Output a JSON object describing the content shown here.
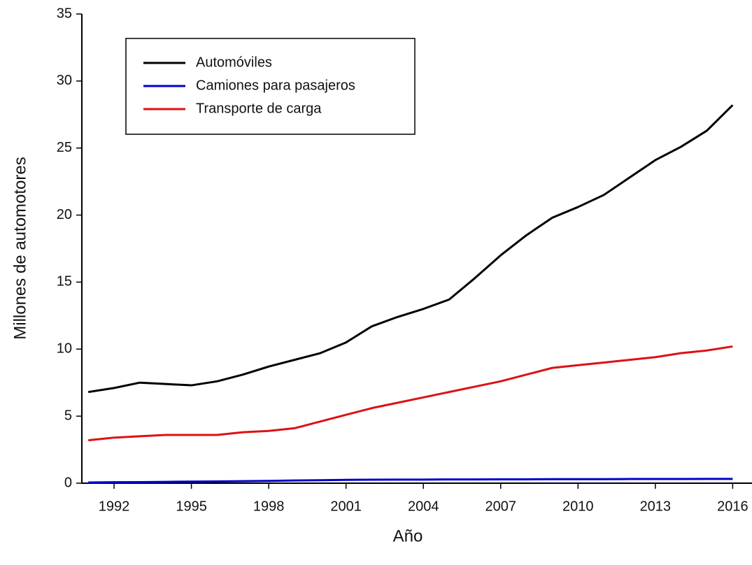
{
  "chart_data": {
    "type": "line",
    "xlabel": "Año",
    "ylabel": "Millones de automotores",
    "x": [
      1991,
      1992,
      1993,
      1994,
      1995,
      1996,
      1997,
      1998,
      1999,
      2000,
      2001,
      2002,
      2003,
      2004,
      2005,
      2006,
      2007,
      2008,
      2009,
      2010,
      2011,
      2012,
      2013,
      2014,
      2015,
      2016
    ],
    "series": [
      {
        "name": "Automóviles",
        "color": "#000000",
        "values": [
          6.8,
          7.1,
          7.5,
          7.4,
          7.3,
          7.6,
          8.1,
          8.7,
          9.2,
          9.7,
          10.5,
          11.7,
          12.4,
          13.0,
          13.7,
          15.3,
          17.0,
          18.5,
          19.8,
          20.6,
          21.5,
          22.8,
          24.1,
          25.1,
          26.3,
          28.2
        ]
      },
      {
        "name": "Camiones para pasajeros",
        "color": "#0000cc",
        "values": [
          0.05,
          0.07,
          0.08,
          0.1,
          0.12,
          0.13,
          0.15,
          0.17,
          0.2,
          0.22,
          0.25,
          0.26,
          0.27,
          0.27,
          0.28,
          0.28,
          0.29,
          0.29,
          0.3,
          0.3,
          0.3,
          0.31,
          0.31,
          0.31,
          0.32,
          0.32
        ]
      },
      {
        "name": "Transporte de carga",
        "color": "#dd1111",
        "values": [
          3.2,
          3.4,
          3.5,
          3.6,
          3.6,
          3.6,
          3.8,
          3.9,
          4.1,
          4.6,
          5.1,
          5.6,
          6.0,
          6.4,
          6.8,
          7.2,
          7.6,
          8.1,
          8.6,
          8.8,
          9.0,
          9.2,
          9.4,
          9.7,
          9.9,
          10.2
        ]
      }
    ],
    "xlim": [
      1990.75,
      2016.75
    ],
    "xticks": [
      1992,
      1995,
      1998,
      2001,
      2004,
      2007,
      2010,
      2013,
      2016
    ],
    "ylim": [
      0,
      35
    ],
    "yticks": [
      0,
      5,
      10,
      15,
      20,
      25,
      30,
      35
    ]
  }
}
